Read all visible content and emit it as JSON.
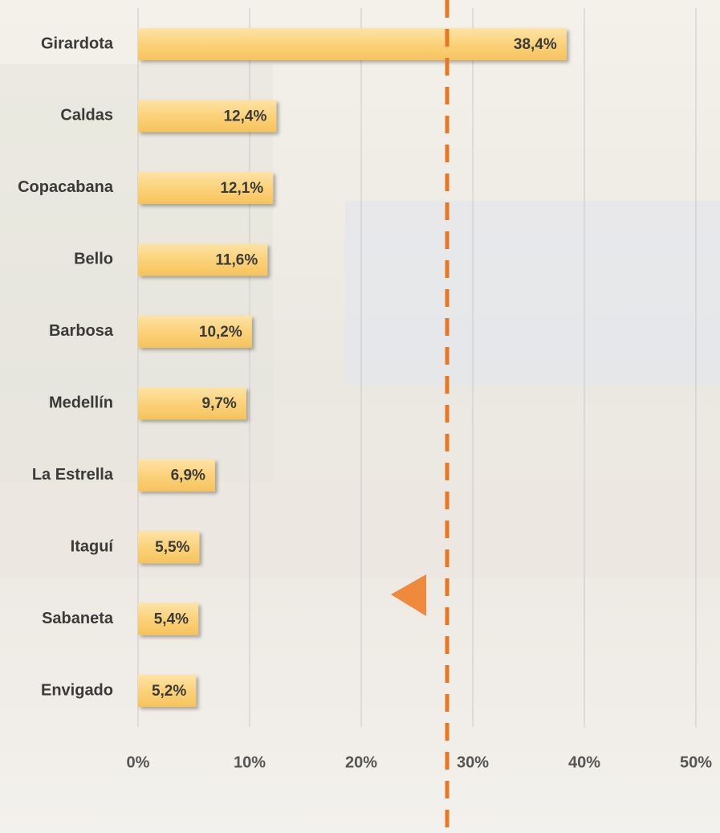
{
  "chart_data": {
    "type": "bar",
    "orientation": "horizontal",
    "categories": [
      "Girardota",
      "Caldas",
      "Copacabana",
      "Bello",
      "Barbosa",
      "Medellín",
      "La Estrella",
      "Itaguí",
      "Sabaneta",
      "Envigado"
    ],
    "values": [
      38.4,
      12.4,
      12.1,
      11.6,
      10.2,
      9.7,
      6.9,
      5.5,
      5.4,
      5.2
    ],
    "value_labels": [
      "38,4%",
      "12,4%",
      "12,1%",
      "11,6%",
      "10,2%",
      "9,7%",
      "6,9%",
      "5,5%",
      "5,4%",
      "5,2%"
    ],
    "color": "#fbd27a",
    "xlim": [
      0,
      50
    ],
    "xticks": [
      {
        "value": 0,
        "label": "0%"
      },
      {
        "value": 10,
        "label": "10%"
      },
      {
        "value": 20,
        "label": "20%"
      },
      {
        "value": 30,
        "label": "30%"
      },
      {
        "value": 40,
        "label": "40%"
      },
      {
        "value": 50,
        "label": "50%"
      }
    ],
    "grid": true,
    "reference_line": 27.7,
    "reference_color": "#e87722"
  }
}
